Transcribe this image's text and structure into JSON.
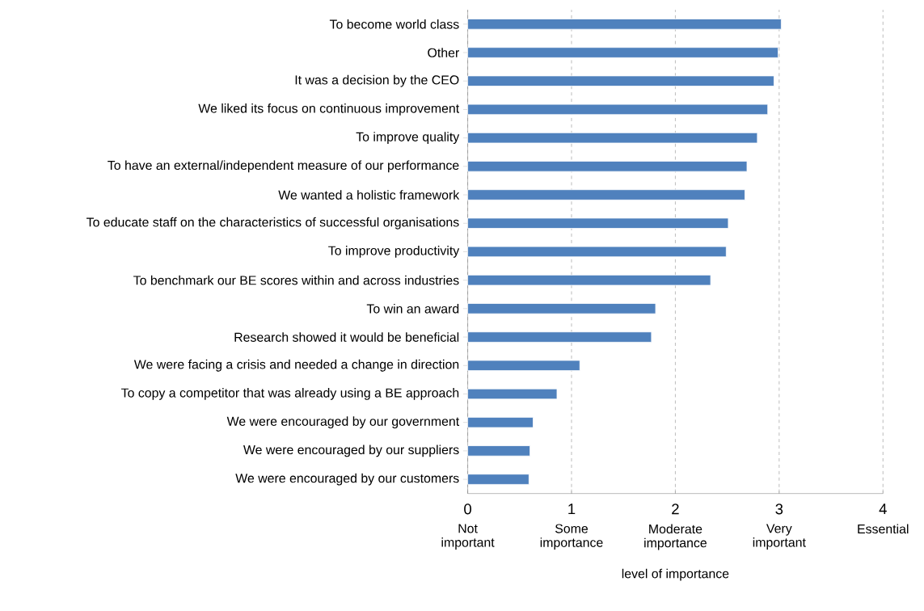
{
  "chart_data": {
    "type": "bar",
    "orientation": "horizontal",
    "xlabel": "level of importance",
    "categories": [
      "To become world class",
      "Other",
      "It was a decision by the CEO",
      "We liked its focus on continuous improvement",
      "To improve quality",
      "To have an external/independent  measure of our performance",
      "We wanted a holistic framework",
      "To educate staff on the characteristics of successful organisations",
      "To improve productivity",
      "To benchmark our BE scores within and across industries",
      "To win an award",
      "Research showed it would be beneficial",
      "We were facing a crisis and needed a change in direction",
      "To copy a competitor that was already using a BE approach",
      "We were encouraged by our government",
      "We were encouraged by our suppliers",
      "We were encouraged by our customers"
    ],
    "values": [
      3.02,
      2.99,
      2.95,
      2.89,
      2.79,
      2.69,
      2.67,
      2.51,
      2.49,
      2.34,
      1.81,
      1.77,
      1.08,
      0.86,
      0.63,
      0.6,
      0.59
    ],
    "color": "#4f81bd",
    "xlim": [
      0,
      4
    ],
    "xticks": [
      0,
      1,
      2,
      3,
      4
    ],
    "grid": "x",
    "annotations": [
      "Not important",
      "Some importance",
      "Moderate importance",
      "Very important",
      "Essential"
    ]
  }
}
